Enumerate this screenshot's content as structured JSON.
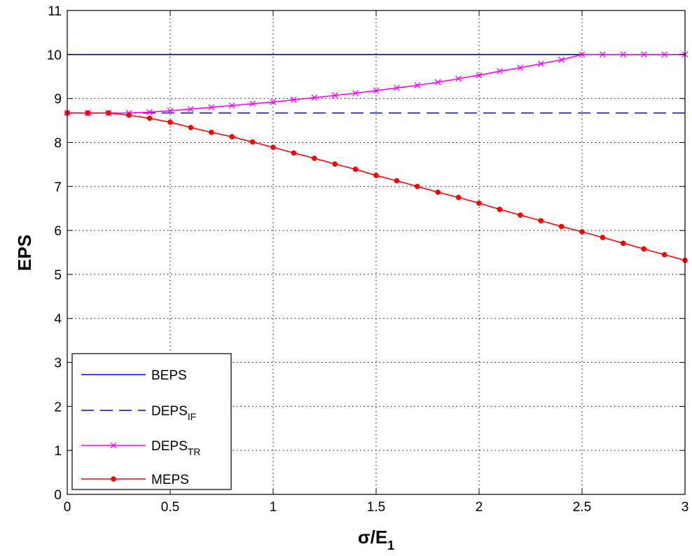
{
  "chart_data": {
    "type": "line",
    "title": "",
    "xlabel": {
      "main": "σ/E",
      "sub": "1"
    },
    "ylabel": "EPS",
    "xlim": [
      0,
      3
    ],
    "ylim": [
      0,
      11
    ],
    "xticks": [
      0,
      0.5,
      1,
      1.5,
      2,
      2.5,
      3
    ],
    "xtick_labels": [
      "0",
      "0.5",
      "1",
      "1.5",
      "2",
      "2.5",
      "3"
    ],
    "yticks": [
      0,
      1,
      2,
      3,
      4,
      5,
      6,
      7,
      8,
      9,
      10,
      11
    ],
    "ytick_labels": [
      "0",
      "1",
      "2",
      "3",
      "4",
      "5",
      "6",
      "7",
      "8",
      "9",
      "10",
      "11"
    ],
    "grid": true,
    "legend_position": "bottom-left",
    "series": [
      {
        "name": "BEPS",
        "legend": {
          "main": "BEPS",
          "sub": ""
        },
        "color": "#0000ff",
        "style": "solid",
        "marker": "none",
        "x": [
          0,
          3
        ],
        "y": [
          10,
          10
        ]
      },
      {
        "name": "DEPS_IF",
        "legend": {
          "main": "DEPS",
          "sub": "IF"
        },
        "color": "#0000ff",
        "style": "dashed",
        "marker": "none",
        "x": [
          0,
          3
        ],
        "y": [
          8.67,
          8.67
        ]
      },
      {
        "name": "DEPS_TR",
        "legend": {
          "main": "DEPS",
          "sub": "TR"
        },
        "color": "#ff00ff",
        "style": "solid",
        "marker": "x",
        "x": [
          0,
          0.1,
          0.2,
          0.3,
          0.4,
          0.5,
          0.6,
          0.7,
          0.8,
          0.9,
          1.0,
          1.1,
          1.2,
          1.3,
          1.4,
          1.5,
          1.6,
          1.7,
          1.8,
          1.9,
          2.0,
          2.1,
          2.2,
          2.3,
          2.4,
          2.5,
          2.6,
          2.7,
          2.8,
          2.9,
          3.0
        ],
        "y": [
          8.67,
          8.67,
          8.67,
          8.67,
          8.69,
          8.72,
          8.76,
          8.8,
          8.84,
          8.88,
          8.92,
          8.97,
          9.02,
          9.07,
          9.12,
          9.18,
          9.24,
          9.3,
          9.37,
          9.45,
          9.53,
          9.62,
          9.7,
          9.79,
          9.88,
          10,
          10,
          10,
          10,
          10,
          10
        ]
      },
      {
        "name": "MEPS",
        "legend": {
          "main": "MEPS",
          "sub": ""
        },
        "color": "#ff0000",
        "style": "solid",
        "marker": "dot",
        "x": [
          0,
          0.1,
          0.2,
          0.3,
          0.4,
          0.5,
          0.6,
          0.7,
          0.8,
          0.9,
          1.0,
          1.1,
          1.2,
          1.3,
          1.4,
          1.5,
          1.6,
          1.7,
          1.8,
          1.9,
          2.0,
          2.1,
          2.2,
          2.3,
          2.4,
          2.5,
          2.6,
          2.7,
          2.8,
          2.9,
          3.0
        ],
        "y": [
          8.67,
          8.67,
          8.67,
          8.62,
          8.55,
          8.46,
          8.34,
          8.23,
          8.13,
          8.01,
          7.89,
          7.76,
          7.64,
          7.51,
          7.39,
          7.25,
          7.13,
          7.0,
          6.87,
          6.75,
          6.62,
          6.48,
          6.35,
          6.22,
          6.09,
          5.97,
          5.84,
          5.71,
          5.58,
          5.45,
          5.32
        ]
      }
    ]
  }
}
